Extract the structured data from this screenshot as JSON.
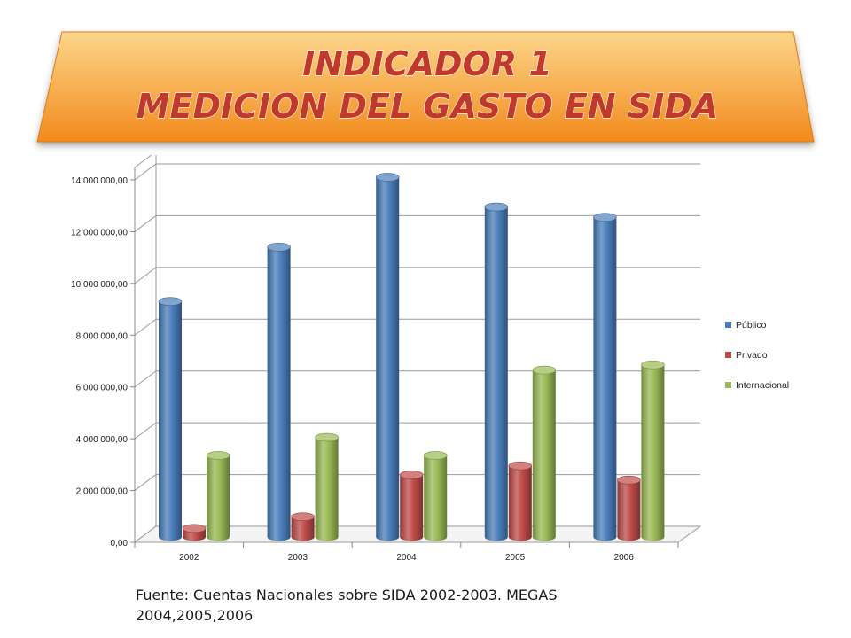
{
  "banner": {
    "line1": "INDICADOR 1",
    "line2": "MEDICION DEL GASTO EN SIDA"
  },
  "source": "Fuente: Cuentas Nacionales sobre SIDA 2002-2003. MEGAS 2004,2005,2006",
  "colors": {
    "banner_top": "#fcd68a",
    "banner_bottom": "#f28a1c",
    "publico": "#4a7ebb",
    "privado": "#be4b48",
    "internacional": "#98b954"
  },
  "chart_data": {
    "type": "bar",
    "categories": [
      "2002",
      "2003",
      "2004",
      "2005",
      "2006"
    ],
    "series": [
      {
        "name": "Público",
        "values": [
          9100000,
          11200000,
          13900000,
          12750000,
          12350000
        ]
      },
      {
        "name": "Privado",
        "values": [
          330000,
          780000,
          2400000,
          2750000,
          2200000
        ]
      },
      {
        "name": "Internacional",
        "values": [
          3150000,
          3850000,
          3150000,
          6450000,
          6650000
        ]
      }
    ],
    "ylim": [
      0,
      14000000
    ],
    "yticks": [
      "0,00",
      "2 000 000,00",
      "4 000 000,00",
      "6 000 000,00",
      "8 000 000,00",
      "10 000 000,00",
      "12 000 000,00",
      "14 000 000,00"
    ],
    "grid": true,
    "legend": "right",
    "style": "3d-cylinder"
  }
}
